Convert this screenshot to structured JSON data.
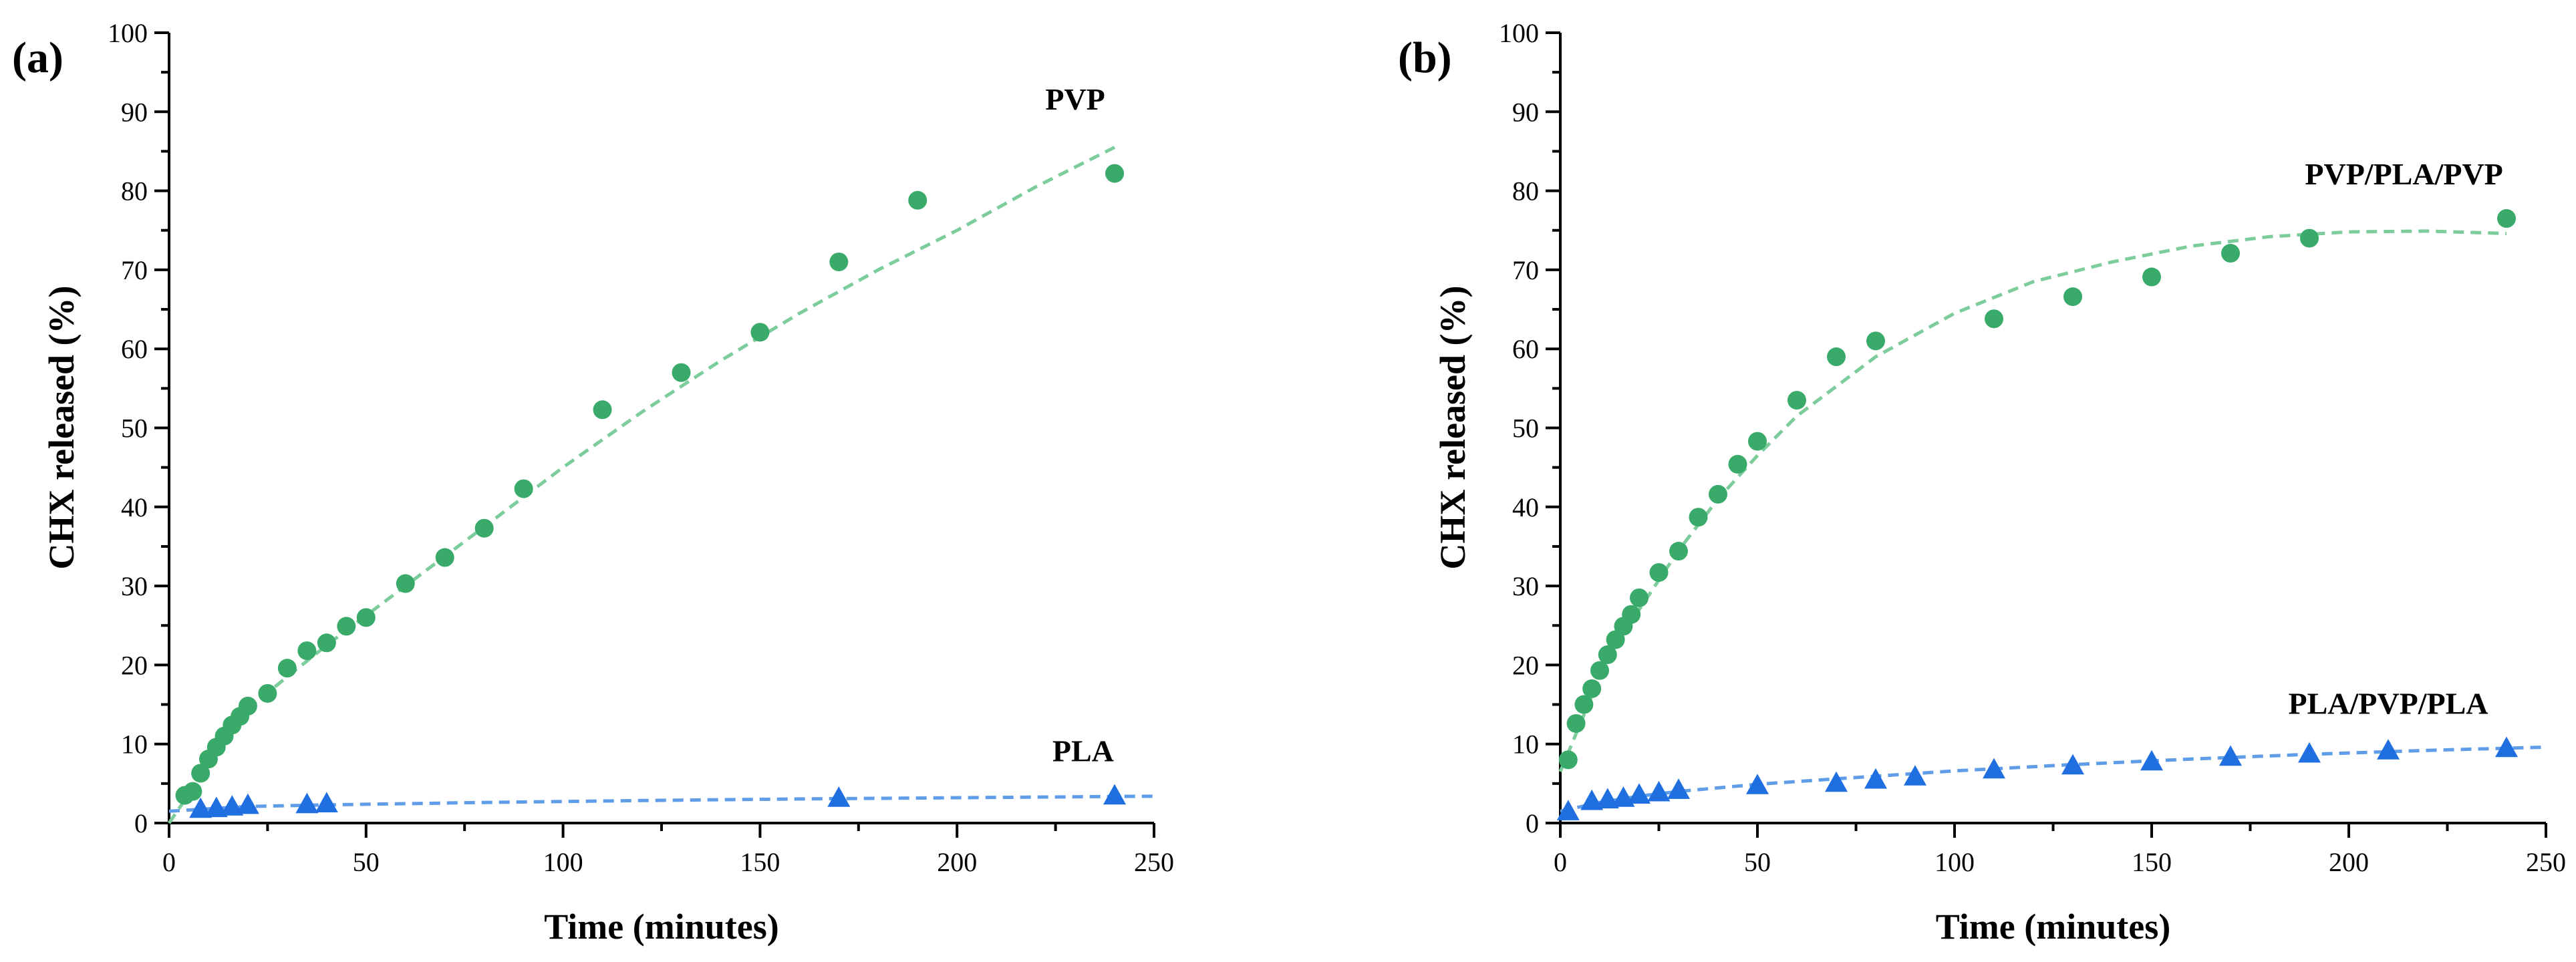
{
  "colors": {
    "green": "#3aaa6a",
    "green_fit": "#7ccc9c",
    "blue": "#1f6fe0",
    "blue_fit": "#5f9de8"
  },
  "chart_data": [
    {
      "type": "scatter",
      "panel_label": "(a)",
      "xlabel": "Time (minutes)",
      "ylabel": "CHX released (%)",
      "xlim": [
        0,
        250
      ],
      "ylim": [
        0,
        100
      ],
      "xticks": [
        "0",
        "50",
        "100",
        "150",
        "200",
        "250"
      ],
      "yticks": [
        "0",
        "10",
        "20",
        "30",
        "40",
        "50",
        "60",
        "70",
        "80",
        "90",
        "100"
      ],
      "series": [
        {
          "name": "PVP",
          "marker": "circle",
          "color": "#3aaa6a",
          "fit_color": "#7ccc9c",
          "x": [
            4,
            6,
            8,
            10,
            12,
            14,
            16,
            18,
            20,
            25,
            30,
            35,
            40,
            45,
            50,
            60,
            70,
            80,
            90,
            110,
            130,
            150,
            170,
            190,
            240
          ],
          "y": [
            3.5,
            4,
            6.3,
            8.1,
            9.6,
            11.0,
            12.4,
            13.5,
            14.8,
            16.4,
            19.6,
            21.8,
            22.8,
            24.9,
            26.0,
            30.3,
            33.6,
            37.3,
            42.3,
            52.3,
            57.0,
            62.1,
            71.0,
            78.8,
            82.2
          ],
          "fit_x": [
            0,
            20,
            40,
            60,
            80,
            100,
            120,
            140,
            160,
            180,
            200,
            220,
            240
          ],
          "fit_y": [
            0,
            14.5,
            22.5,
            30.0,
            37.5,
            45.0,
            52.0,
            58.5,
            64.5,
            70.0,
            75.0,
            80.5,
            85.5
          ],
          "label_x": 230,
          "label_y": 90.3
        },
        {
          "name": "PLA",
          "marker": "triangle",
          "color": "#1f6fe0",
          "fit_color": "#5f9de8",
          "x": [
            8,
            12,
            16,
            20,
            35,
            40,
            170,
            240
          ],
          "y": [
            1.8,
            1.9,
            2.1,
            2.3,
            2.4,
            2.5,
            3.2,
            3.5
          ],
          "fit_x": [
            0,
            20,
            40,
            80,
            120,
            160,
            200,
            250
          ],
          "fit_y": [
            1.5,
            2.1,
            2.3,
            2.6,
            2.85,
            3.05,
            3.2,
            3.4
          ],
          "label_x": 232,
          "label_y": 7.8
        }
      ]
    },
    {
      "type": "scatter",
      "panel_label": "(b)",
      "xlabel": "Time (minutes)",
      "ylabel": "CHX released (%)",
      "xlim": [
        0,
        250
      ],
      "ylim": [
        0,
        100
      ],
      "xticks": [
        "0",
        "50",
        "100",
        "150",
        "200",
        "250"
      ],
      "yticks": [
        "0",
        "10",
        "20",
        "30",
        "40",
        "50",
        "60",
        "70",
        "80",
        "90",
        "100"
      ],
      "series": [
        {
          "name": "PVP/PLA/PVP",
          "marker": "circle",
          "color": "#3aaa6a",
          "fit_color": "#7ccc9c",
          "x": [
            2,
            4,
            6,
            8,
            10,
            12,
            14,
            16,
            18,
            20,
            25,
            30,
            35,
            40,
            45,
            50,
            60,
            70,
            80,
            110,
            130,
            150,
            170,
            190,
            240
          ],
          "y": [
            8,
            12.6,
            15,
            17,
            19.3,
            21.3,
            23.2,
            24.9,
            26.4,
            28.5,
            31.7,
            34.4,
            38.7,
            41.6,
            45.4,
            48.3,
            53.5,
            59.0,
            61.0,
            63.8,
            66.6,
            69.1,
            72.1,
            74.0,
            76.5
          ],
          "fit_x": [
            0,
            10,
            20,
            30,
            40,
            50,
            60,
            80,
            100,
            120,
            140,
            160,
            180,
            200,
            220,
            240
          ],
          "fit_y": [
            6.5,
            18.5,
            27.0,
            34.5,
            41.0,
            46.5,
            51.5,
            59.0,
            64.5,
            68.5,
            71.0,
            73.0,
            74.2,
            74.8,
            74.9,
            74.6
          ],
          "label_x": 214,
          "label_y": 80.8
        },
        {
          "name": "PLA/PVP/PLA",
          "marker": "triangle",
          "color": "#1f6fe0",
          "fit_color": "#5f9de8",
          "x": [
            2,
            8,
            12,
            16,
            20,
            25,
            30,
            50,
            70,
            80,
            90,
            110,
            130,
            150,
            170,
            190,
            210,
            240
          ],
          "y": [
            1.5,
            2.8,
            3.0,
            3.2,
            3.6,
            3.9,
            4.2,
            4.8,
            5.1,
            5.5,
            5.9,
            6.8,
            7.3,
            7.8,
            8.4,
            8.8,
            9.2,
            9.5
          ],
          "fit_x": [
            0,
            10,
            20,
            30,
            50,
            70,
            100,
            130,
            160,
            190,
            220,
            250
          ],
          "fit_y": [
            1.5,
            2.6,
            3.4,
            4.0,
            4.9,
            5.6,
            6.6,
            7.4,
            8.1,
            8.7,
            9.2,
            9.6
          ],
          "label_x": 210,
          "label_y": 13.8
        }
      ]
    }
  ]
}
